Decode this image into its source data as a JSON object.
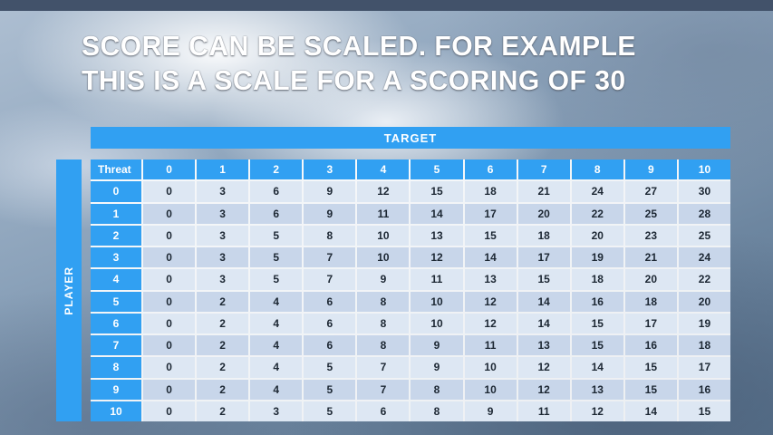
{
  "slide": {
    "title_line1": "SCORE CAN BE SCALED. FOR EXAMPLE",
    "title_line2": "THIS IS A SCALE FOR A SCORING OF 30"
  },
  "table": {
    "target_label": "TARGET",
    "player_label": "PLAYER",
    "corner_label": "Threat",
    "column_headers": [
      "0",
      "1",
      "2",
      "3",
      "4",
      "5",
      "6",
      "7",
      "8",
      "9",
      "10"
    ],
    "rows": [
      {
        "threat": "0",
        "values": [
          0,
          3,
          6,
          9,
          12,
          15,
          18,
          21,
          24,
          27,
          30
        ]
      },
      {
        "threat": "1",
        "values": [
          0,
          3,
          6,
          9,
          11,
          14,
          17,
          20,
          22,
          25,
          28
        ]
      },
      {
        "threat": "2",
        "values": [
          0,
          3,
          5,
          8,
          10,
          13,
          15,
          18,
          20,
          23,
          25
        ]
      },
      {
        "threat": "3",
        "values": [
          0,
          3,
          5,
          7,
          10,
          12,
          14,
          17,
          19,
          21,
          24
        ]
      },
      {
        "threat": "4",
        "values": [
          0,
          3,
          5,
          7,
          9,
          11,
          13,
          15,
          18,
          20,
          22
        ]
      },
      {
        "threat": "5",
        "values": [
          0,
          2,
          4,
          6,
          8,
          10,
          12,
          14,
          16,
          18,
          20
        ]
      },
      {
        "threat": "6",
        "values": [
          0,
          2,
          4,
          6,
          8,
          10,
          12,
          14,
          15,
          17,
          19
        ]
      },
      {
        "threat": "7",
        "values": [
          0,
          2,
          4,
          6,
          8,
          9,
          11,
          13,
          15,
          16,
          18
        ]
      },
      {
        "threat": "8",
        "values": [
          0,
          2,
          4,
          5,
          7,
          9,
          10,
          12,
          14,
          15,
          17
        ]
      },
      {
        "threat": "9",
        "values": [
          0,
          2,
          4,
          5,
          7,
          8,
          10,
          12,
          13,
          15,
          16
        ]
      },
      {
        "threat": "10",
        "values": [
          0,
          2,
          3,
          5,
          6,
          8,
          9,
          11,
          12,
          14,
          15
        ]
      }
    ]
  },
  "colors": {
    "accent_blue": "#31a0f2",
    "row_light": "#dde7f3",
    "row_dark": "#c8d6ea",
    "text_dark": "#1c2733"
  }
}
